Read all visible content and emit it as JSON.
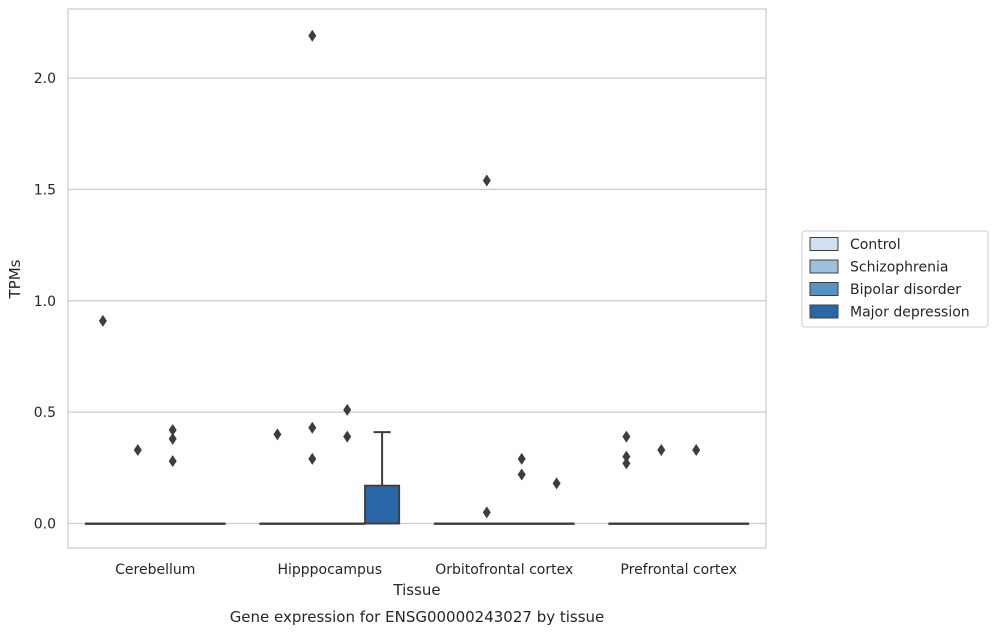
{
  "chart_data": {
    "type": "box",
    "xlabel": "Tissue",
    "ylabel": "TPMs",
    "caption": "Gene expression for ENSG00000243027 by tissue",
    "ylim": [
      -0.11,
      2.31
    ],
    "yticks": [
      0.0,
      0.5,
      1.0,
      1.5,
      2.0
    ],
    "ytick_labels": [
      "0.0",
      "0.5",
      "1.0",
      "1.5",
      "2.0"
    ],
    "grid": "horizontal",
    "legend_position": "right",
    "categories": [
      "Cerebellum",
      "Hipppocampus",
      "Orbitofrontal cortex",
      "Prefrontal cortex"
    ],
    "series": [
      {
        "name": "Control",
        "color": "#d0e1f2",
        "boxes": [
          {
            "q1": 0,
            "median": 0,
            "q3": 0,
            "whislo": 0,
            "whishi": 0,
            "fliers": [
              0.91
            ]
          },
          {
            "q1": 0,
            "median": 0,
            "q3": 0,
            "whislo": 0,
            "whishi": 0,
            "fliers": [
              0.4
            ]
          },
          {
            "q1": 0,
            "median": 0,
            "q3": 0,
            "whislo": 0,
            "whishi": 0,
            "fliers": []
          },
          {
            "q1": 0,
            "median": 0,
            "q3": 0,
            "whislo": 0,
            "whishi": 0,
            "fliers": [
              0.39,
              0.3,
              0.27
            ]
          }
        ]
      },
      {
        "name": "Schizophrenia",
        "color": "#9ac2de",
        "boxes": [
          {
            "q1": 0,
            "median": 0,
            "q3": 0,
            "whislo": 0,
            "whishi": 0,
            "fliers": [
              0.33
            ]
          },
          {
            "q1": 0,
            "median": 0,
            "q3": 0,
            "whislo": 0,
            "whishi": 0,
            "fliers": [
              2.19,
              0.43,
              0.29
            ]
          },
          {
            "q1": 0,
            "median": 0,
            "q3": 0,
            "whislo": 0,
            "whishi": 0,
            "fliers": [
              1.54,
              0.05
            ]
          },
          {
            "q1": 0,
            "median": 0,
            "q3": 0,
            "whislo": 0,
            "whishi": 0,
            "fliers": [
              0.33
            ]
          }
        ]
      },
      {
        "name": "Bipolar disorder",
        "color": "#5493c4",
        "boxes": [
          {
            "q1": 0,
            "median": 0,
            "q3": 0,
            "whislo": 0,
            "whishi": 0,
            "fliers": [
              0.42,
              0.38,
              0.28
            ]
          },
          {
            "q1": 0,
            "median": 0,
            "q3": 0,
            "whislo": 0,
            "whishi": 0,
            "fliers": [
              0.51,
              0.39
            ]
          },
          {
            "q1": 0,
            "median": 0,
            "q3": 0,
            "whislo": 0,
            "whishi": 0,
            "fliers": [
              0.29,
              0.22
            ]
          },
          {
            "q1": 0,
            "median": 0,
            "q3": 0,
            "whislo": 0,
            "whishi": 0,
            "fliers": [
              0.33
            ]
          }
        ]
      },
      {
        "name": "Major depression",
        "color": "#2a67a6",
        "boxes": [
          {
            "q1": 0,
            "median": 0,
            "q3": 0,
            "whislo": 0,
            "whishi": 0,
            "fliers": []
          },
          {
            "q1": 0,
            "median": 0,
            "q3": 0.17,
            "whislo": 0,
            "whishi": 0.41,
            "fliers": []
          },
          {
            "q1": 0,
            "median": 0,
            "q3": 0,
            "whislo": 0,
            "whishi": 0,
            "fliers": [
              0.18
            ]
          },
          {
            "q1": 0,
            "median": 0,
            "q3": 0,
            "whislo": 0,
            "whishi": 0,
            "fliers": []
          }
        ]
      }
    ]
  }
}
